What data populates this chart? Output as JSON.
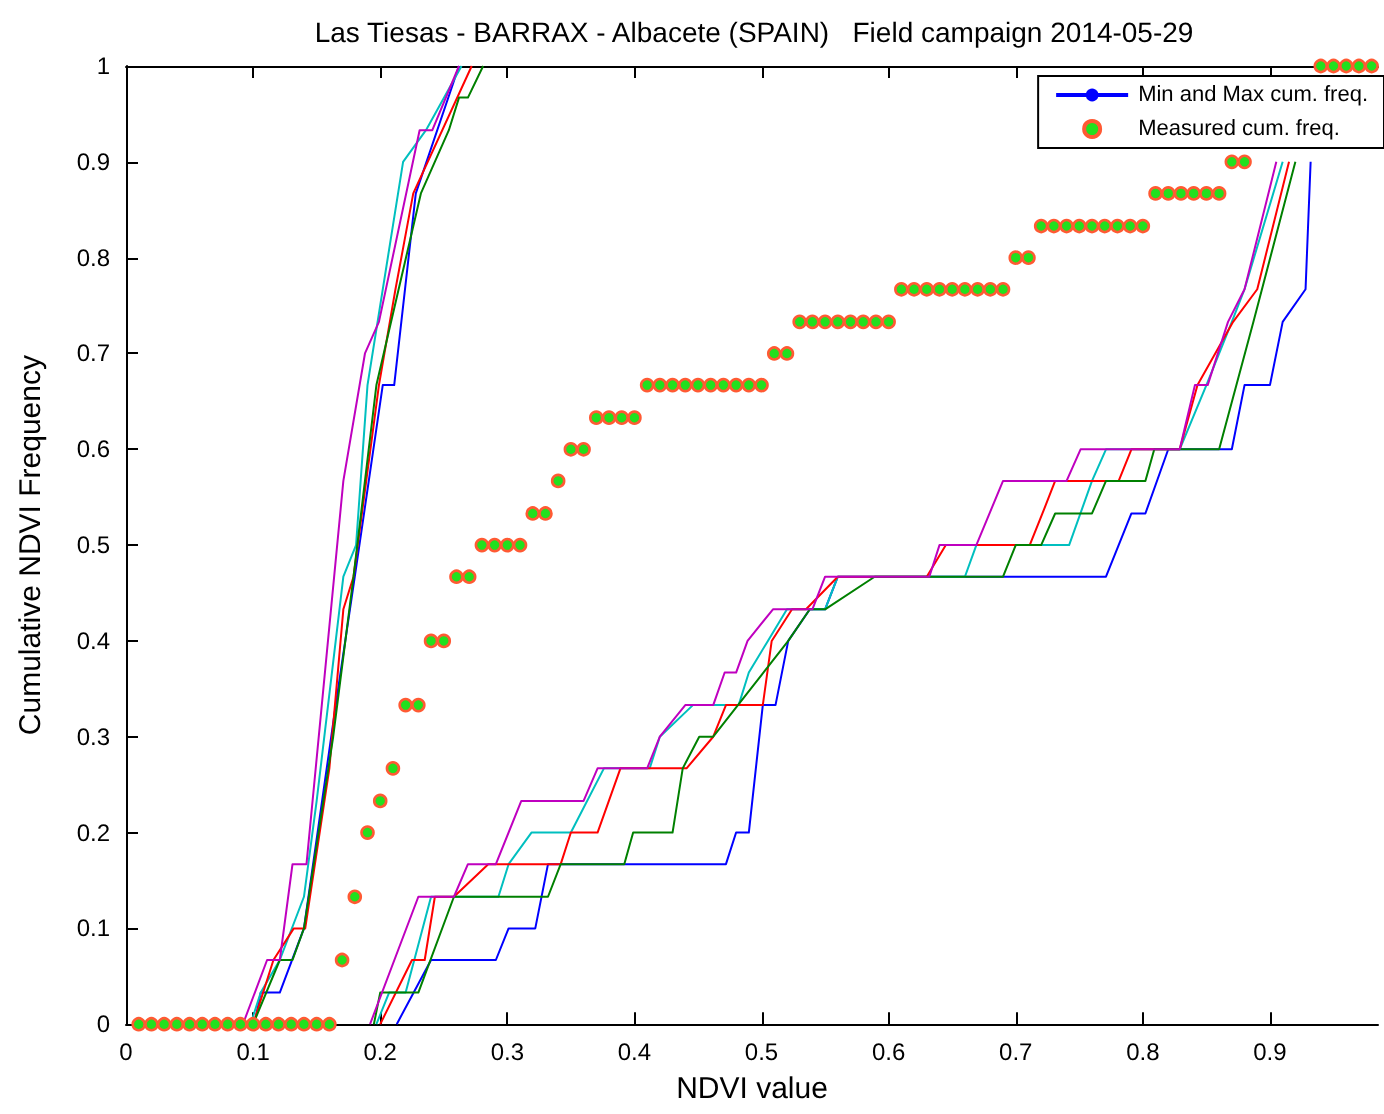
{
  "chart_data": {
    "type": "line",
    "title": "Las Tiesas - BARRAX - Albacete (SPAIN)   Field campaign 2014-05-29",
    "xlabel": "NDVI value",
    "ylabel": "Cumulative NDVI Frequency",
    "xlim": [
      0,
      0.985
    ],
    "xticks": [
      0,
      0.1,
      0.2,
      0.3,
      0.4,
      0.5,
      0.6,
      0.7,
      0.8,
      0.9
    ],
    "ylim": [
      0,
      1
    ],
    "yticks": [
      0,
      0.1,
      0.2,
      0.3,
      0.4,
      0.5,
      0.6,
      0.7,
      0.8,
      0.9,
      1
    ],
    "grid": false,
    "legend": "top right",
    "series": [
      {
        "name": "Min and Max cum. freq.",
        "color": "#0000ff",
        "marker": "none",
        "x": [
          0.101,
          0.106,
          0.121,
          0.14,
          0.165,
          0.18,
          0.202,
          0.211,
          0.228,
          0.262
        ],
        "values": [
          0,
          0.033,
          0.033,
          0.1,
          0.333,
          0.467,
          0.667,
          0.667,
          0.867,
          1
        ]
      },
      {
        "color": "#00bfbf",
        "marker": "none",
        "x": [
          0.098,
          0.106,
          0.121,
          0.14,
          0.15,
          0.171,
          0.181,
          0.19,
          0.218,
          0.236,
          0.264
        ],
        "values": [
          0,
          0.033,
          0.067,
          0.133,
          0.233,
          0.467,
          0.5,
          0.667,
          0.9,
          0.933,
          1
        ]
      },
      {
        "color": "#ff0000",
        "marker": "none",
        "x": [
          0.1,
          0.116,
          0.132,
          0.141,
          0.16,
          0.171,
          0.179,
          0.199,
          0.212,
          0.226,
          0.272
        ],
        "values": [
          0,
          0.067,
          0.1,
          0.1,
          0.267,
          0.433,
          0.467,
          0.667,
          0.767,
          0.867,
          1
        ]
      },
      {
        "color": "#008000",
        "marker": "none",
        "x": [
          0.1,
          0.121,
          0.131,
          0.14,
          0.163,
          0.179,
          0.197,
          0.232,
          0.254,
          0.262,
          0.269,
          0.281
        ],
        "values": [
          0,
          0.067,
          0.067,
          0.1,
          0.3,
          0.467,
          0.667,
          0.867,
          0.933,
          0.967,
          0.967,
          1
        ]
      },
      {
        "color": "#bf00bf",
        "marker": "none",
        "x": [
          0.092,
          0.111,
          0.121,
          0.131,
          0.142,
          0.171,
          0.188,
          0.199,
          0.231,
          0.241,
          0.262
        ],
        "values": [
          0,
          0.067,
          0.067,
          0.167,
          0.167,
          0.567,
          0.7,
          0.733,
          0.933,
          0.933,
          1
        ]
      },
      {
        "color": "#0000ff",
        "marker": "none",
        "x": [
          0.213,
          0.24,
          0.291,
          0.301,
          0.322,
          0.332,
          0.472,
          0.48,
          0.49,
          0.501,
          0.511,
          0.521,
          0.538,
          0.55,
          0.56,
          0.771,
          0.791,
          0.802,
          0.82,
          0.87,
          0.88,
          0.9,
          0.91,
          0.928,
          0.932
        ],
        "values": [
          0,
          0.067,
          0.067,
          0.1,
          0.1,
          0.167,
          0.167,
          0.2,
          0.2,
          0.333,
          0.333,
          0.4,
          0.433,
          0.433,
          0.467,
          0.467,
          0.533,
          0.533,
          0.6,
          0.6,
          0.667,
          0.667,
          0.733,
          0.767,
          0.9
        ]
      },
      {
        "color": "#00bfbf",
        "marker": "none",
        "x": [
          0.197,
          0.207,
          0.22,
          0.24,
          0.293,
          0.301,
          0.319,
          0.35,
          0.376,
          0.412,
          0.42,
          0.446,
          0.482,
          0.49,
          0.505,
          0.52,
          0.55,
          0.56,
          0.66,
          0.669,
          0.742,
          0.76,
          0.771,
          0.829,
          0.85,
          0.87,
          0.88,
          0.91
        ],
        "values": [
          0,
          0.033,
          0.033,
          0.133,
          0.133,
          0.167,
          0.2,
          0.2,
          0.267,
          0.267,
          0.3,
          0.333,
          0.333,
          0.367,
          0.4,
          0.433,
          0.433,
          0.467,
          0.467,
          0.5,
          0.5,
          0.567,
          0.6,
          0.6,
          0.667,
          0.733,
          0.767,
          0.9
        ]
      },
      {
        "color": "#ff0000",
        "marker": "none",
        "x": [
          0.2,
          0.225,
          0.235,
          0.243,
          0.258,
          0.285,
          0.342,
          0.35,
          0.371,
          0.389,
          0.441,
          0.462,
          0.472,
          0.501,
          0.508,
          0.524,
          0.535,
          0.56,
          0.63,
          0.645,
          0.711,
          0.721,
          0.731,
          0.781,
          0.791,
          0.829,
          0.843,
          0.871,
          0.89,
          0.915
        ],
        "values": [
          0,
          0.067,
          0.067,
          0.133,
          0.133,
          0.167,
          0.167,
          0.2,
          0.2,
          0.267,
          0.267,
          0.3,
          0.333,
          0.333,
          0.4,
          0.433,
          0.433,
          0.467,
          0.467,
          0.5,
          0.5,
          0.533,
          0.567,
          0.567,
          0.6,
          0.6,
          0.667,
          0.733,
          0.767,
          0.9
        ]
      },
      {
        "color": "#008000",
        "marker": "none",
        "x": [
          0.195,
          0.2,
          0.23,
          0.258,
          0.332,
          0.342,
          0.392,
          0.399,
          0.43,
          0.438,
          0.451,
          0.462,
          0.521,
          0.538,
          0.55,
          0.589,
          0.69,
          0.7,
          0.72,
          0.731,
          0.76,
          0.771,
          0.802,
          0.809,
          0.86,
          0.887,
          0.92
        ],
        "values": [
          0,
          0.033,
          0.033,
          0.133,
          0.133,
          0.167,
          0.167,
          0.2,
          0.2,
          0.267,
          0.3,
          0.3,
          0.4,
          0.433,
          0.433,
          0.467,
          0.467,
          0.5,
          0.5,
          0.533,
          0.533,
          0.567,
          0.567,
          0.6,
          0.6,
          0.733,
          0.9
        ]
      },
      {
        "color": "#bf00bf",
        "marker": "none",
        "x": [
          0.192,
          0.23,
          0.258,
          0.269,
          0.291,
          0.311,
          0.36,
          0.371,
          0.41,
          0.42,
          0.44,
          0.462,
          0.471,
          0.48,
          0.489,
          0.509,
          0.54,
          0.55,
          0.632,
          0.64,
          0.669,
          0.69,
          0.74,
          0.751,
          0.829,
          0.841,
          0.851,
          0.867,
          0.88,
          0.905
        ],
        "values": [
          0,
          0.133,
          0.133,
          0.167,
          0.167,
          0.233,
          0.233,
          0.267,
          0.267,
          0.3,
          0.333,
          0.333,
          0.367,
          0.367,
          0.4,
          0.433,
          0.433,
          0.467,
          0.467,
          0.5,
          0.5,
          0.567,
          0.567,
          0.6,
          0.6,
          0.667,
          0.667,
          0.733,
          0.767,
          0.9
        ]
      },
      {
        "name": "Measured cum. freq.",
        "type": "scatter",
        "color": "#ff5a33",
        "marker": "circle",
        "x": [
          0.01,
          0.02,
          0.03,
          0.04,
          0.05,
          0.06,
          0.07,
          0.08,
          0.09,
          0.1,
          0.11,
          0.12,
          0.13,
          0.14,
          0.15,
          0.16,
          0.17,
          0.18,
          0.19,
          0.2,
          0.21,
          0.22,
          0.23,
          0.24,
          0.25,
          0.26,
          0.27,
          0.28,
          0.29,
          0.3,
          0.31,
          0.32,
          0.33,
          0.34,
          0.35,
          0.36,
          0.37,
          0.38,
          0.39,
          0.4,
          0.41,
          0.42,
          0.43,
          0.44,
          0.45,
          0.46,
          0.47,
          0.48,
          0.49,
          0.5,
          0.51,
          0.52,
          0.53,
          0.54,
          0.55,
          0.56,
          0.57,
          0.58,
          0.59,
          0.6,
          0.61,
          0.62,
          0.63,
          0.64,
          0.65,
          0.66,
          0.67,
          0.68,
          0.69,
          0.7,
          0.71,
          0.72,
          0.73,
          0.74,
          0.75,
          0.76,
          0.77,
          0.78,
          0.79,
          0.8,
          0.81,
          0.82,
          0.83,
          0.84,
          0.85,
          0.86,
          0.87,
          0.88,
          0.89,
          0.9,
          0.91,
          0.92,
          0.93,
          0.94,
          0.95,
          0.96,
          0.97,
          0.98
        ],
        "values": [
          0,
          0,
          0,
          0,
          0,
          0,
          0,
          0,
          0,
          0,
          0,
          0,
          0,
          0,
          0,
          0,
          0.067,
          0.133,
          0.2,
          0.233,
          0.267,
          0.333,
          0.333,
          0.4,
          0.4,
          0.467,
          0.467,
          0.5,
          0.5,
          0.5,
          0.5,
          0.533,
          0.533,
          0.567,
          0.6,
          0.6,
          0.633,
          0.633,
          0.633,
          0.633,
          0.667,
          0.667,
          0.667,
          0.667,
          0.667,
          0.667,
          0.667,
          0.667,
          0.667,
          0.667,
          0.7,
          0.7,
          0.733,
          0.733,
          0.733,
          0.733,
          0.733,
          0.733,
          0.733,
          0.733,
          0.767,
          0.767,
          0.767,
          0.767,
          0.767,
          0.767,
          0.767,
          0.767,
          0.767,
          0.8,
          0.8,
          0.833,
          0.833,
          0.833,
          0.833,
          0.833,
          0.833,
          0.833,
          0.833,
          0.833,
          0.867,
          0.867,
          0.867,
          0.867,
          0.867,
          0.867,
          0.9,
          0.9,
          null,
          null,
          null,
          null,
          null,
          1,
          1,
          1,
          1,
          1
        ]
      }
    ]
  }
}
